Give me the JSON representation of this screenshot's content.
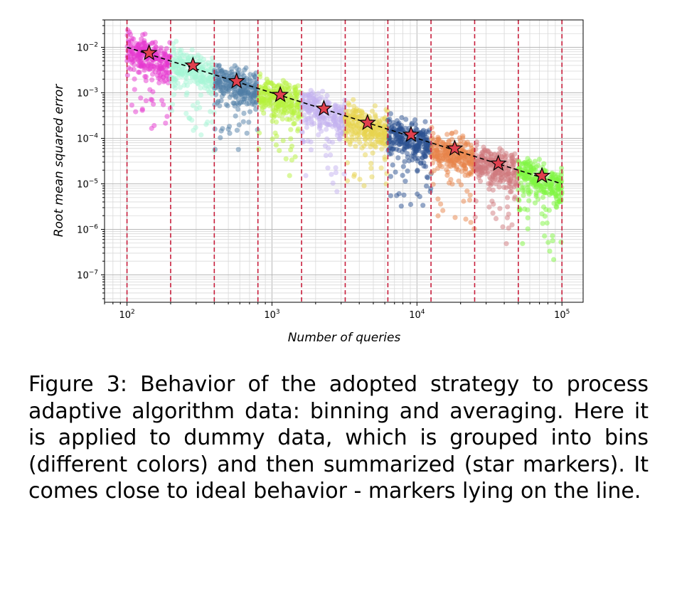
{
  "chart_data": {
    "type": "scatter",
    "xlabel": "Number of queries",
    "ylabel": "Root mean squared error",
    "x_scale": "log",
    "y_scale": "log",
    "xlim": [
      70,
      140000
    ],
    "ylim": [
      2.5e-08,
      0.04
    ],
    "x_ticks": [
      {
        "value": 100,
        "base": "10",
        "exp": "2"
      },
      {
        "value": 1000,
        "base": "10",
        "exp": "3"
      },
      {
        "value": 10000,
        "base": "10",
        "exp": "4"
      },
      {
        "value": 100000,
        "base": "10",
        "exp": "5"
      }
    ],
    "y_ticks": [
      {
        "value": 0.01,
        "base": "10",
        "exp": "−2"
      },
      {
        "value": 0.001,
        "base": "10",
        "exp": "−3"
      },
      {
        "value": 0.0001,
        "base": "10",
        "exp": "−4"
      },
      {
        "value": 1e-05,
        "base": "10",
        "exp": "−5"
      },
      {
        "value": 1e-06,
        "base": "10",
        "exp": "−6"
      },
      {
        "value": 1e-07,
        "base": "10",
        "exp": "−7"
      }
    ],
    "grid": "major and minor",
    "bin_edges": [
      100,
      200,
      400,
      800,
      1600,
      3200,
      6300,
      12500,
      25000,
      50000,
      100000
    ],
    "bins": [
      {
        "x_range": [
          100,
          200
        ],
        "color": "#e637d0",
        "star": {
          "x": 142,
          "y": 0.0075
        }
      },
      {
        "x_range": [
          200,
          400
        ],
        "color": "#a6f5d6",
        "star": {
          "x": 285,
          "y": 0.004
        }
      },
      {
        "x_range": [
          400,
          800
        ],
        "color": "#4f7ea6",
        "star": {
          "x": 570,
          "y": 0.0018
        }
      },
      {
        "x_range": [
          800,
          1600
        ],
        "color": "#b6f23c",
        "star": {
          "x": 1140,
          "y": 0.0009
        }
      },
      {
        "x_range": [
          1600,
          3200
        ],
        "color": "#c4b2ef",
        "star": {
          "x": 2280,
          "y": 0.00045
        }
      },
      {
        "x_range": [
          3200,
          6300
        ],
        "color": "#e8d44d",
        "star": {
          "x": 4560,
          "y": 0.00022
        }
      },
      {
        "x_range": [
          6300,
          12500
        ],
        "color": "#2a4f8f",
        "star": {
          "x": 9100,
          "y": 0.00012
        }
      },
      {
        "x_range": [
          12500,
          25000
        ],
        "color": "#e8844a",
        "star": {
          "x": 18200,
          "y": 6e-05
        }
      },
      {
        "x_range": [
          25000,
          50000
        ],
        "color": "#cf7a7e",
        "star": {
          "x": 36400,
          "y": 2.8e-05
        }
      },
      {
        "x_range": [
          50000,
          100000
        ],
        "color": "#80f542",
        "star": {
          "x": 72800,
          "y": 1.5e-05
        }
      }
    ],
    "ideal_line": {
      "x": [
        100,
        100000
      ],
      "y": [
        0.01,
        1e-05
      ],
      "style": "dashed",
      "color": "#000000"
    },
    "bin_edge_line_color": "#c81e3c",
    "star_color": "#e0404e"
  },
  "caption": "Figure 3: Behavior of the adopted strategy to process adaptive algorithm data: binning and averaging. Here it is applied to dummy data, which is grouped into bins (different colors) and then summarized (star markers). It comes close to ideal behavior - markers lying on the line."
}
